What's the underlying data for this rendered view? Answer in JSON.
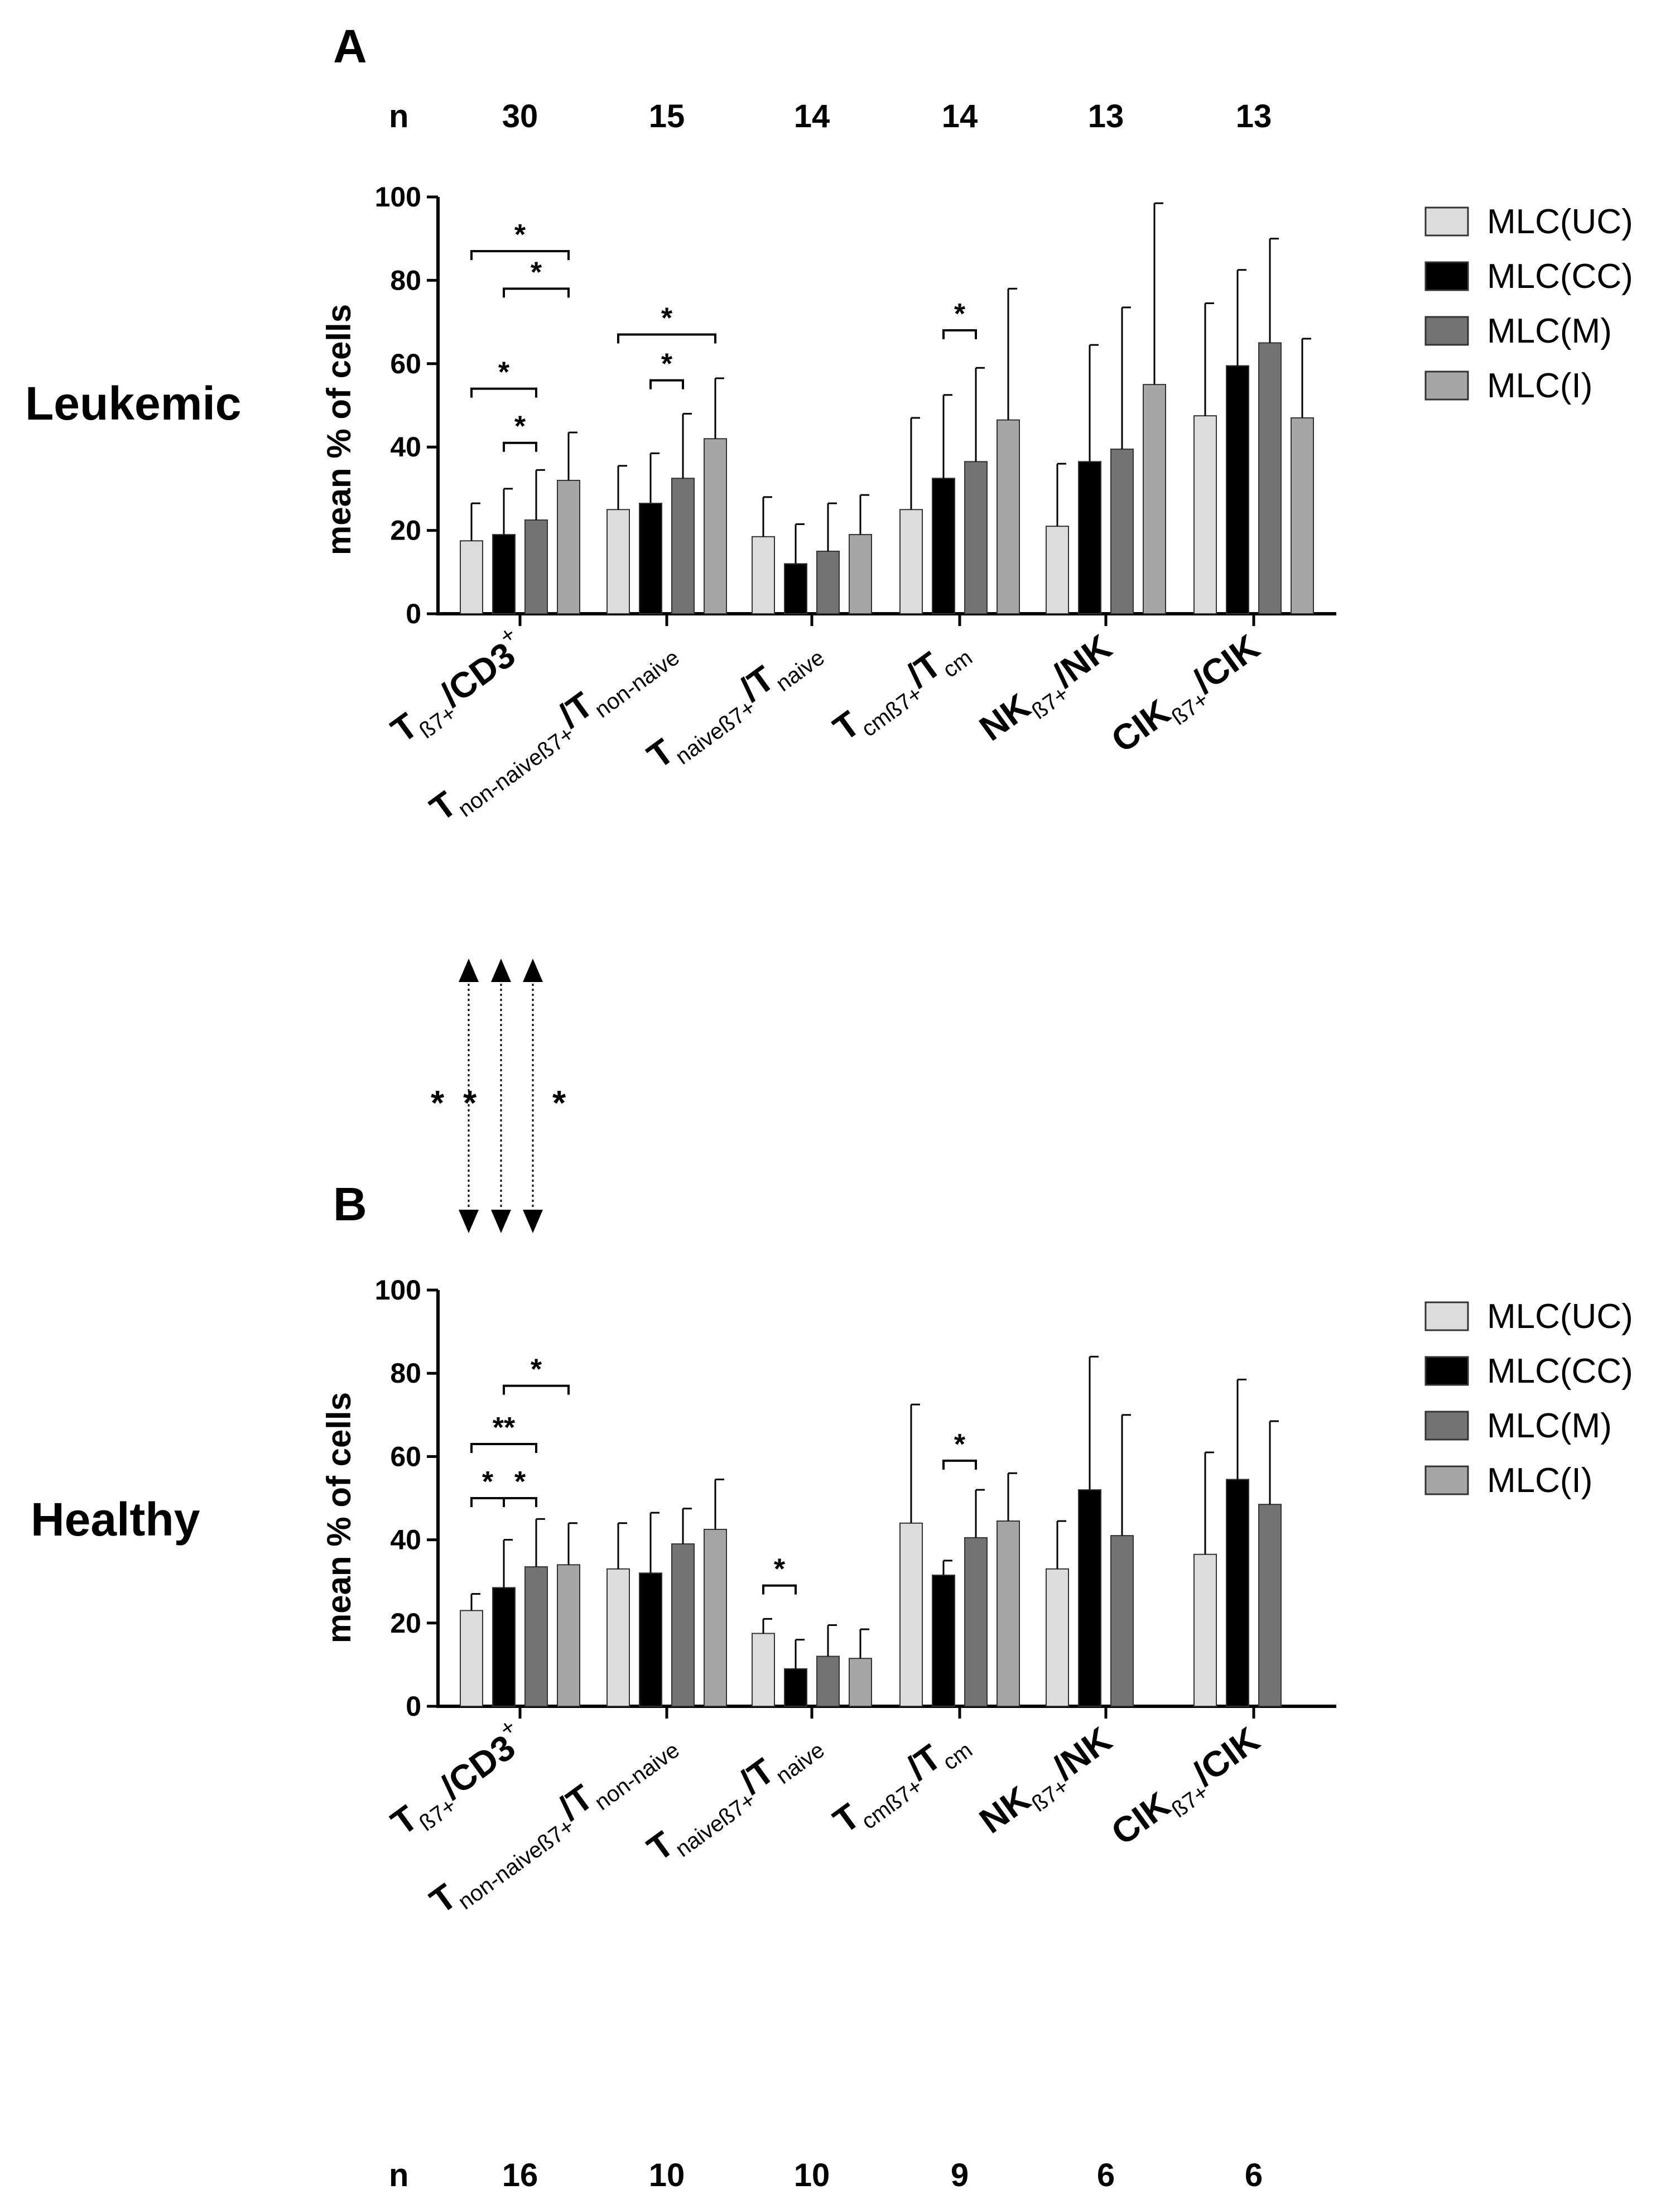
{
  "colors": {
    "MLC(UC)": "#dcdcdc",
    "MLC(CC)": "#000000",
    "MLC(M)": "#737373",
    "MLC(I)": "#a6a6a6"
  },
  "legend": [
    "MLC(UC)",
    "MLC(CC)",
    "MLC(M)",
    "MLC(I)"
  ],
  "cross_panel_stars": [
    "*",
    "*",
    "*"
  ],
  "chart_data": [
    {
      "type": "bar",
      "panel": "A",
      "row_label": "Leukemic",
      "ylabel": "mean % of cells",
      "ylim": [
        0,
        100
      ],
      "yticks": [
        "0",
        "20",
        "40",
        "60",
        "80",
        "100"
      ],
      "n_label": "n",
      "n_values": [
        "30",
        "15",
        "14",
        "14",
        "13",
        "13"
      ],
      "categories": [
        {
          "pre": "T",
          "sub": "ß7+",
          "mid": "/CD3",
          "sup": "+",
          "tail": ""
        },
        {
          "pre": "T",
          "sub": "non-naiveß7+",
          "mid": "/T",
          "sup": "",
          "tail": "non-naive"
        },
        {
          "pre": "T",
          "sub": "naiveß7+",
          "mid": "/T",
          "sup": "",
          "tail": "naive"
        },
        {
          "pre": "T",
          "sub": "cmß7+",
          "mid": "/T",
          "sup": "",
          "tail": "cm"
        },
        {
          "pre": "NK",
          "sub": "ß7+",
          "mid": "/NK",
          "sup": "",
          "tail": ""
        },
        {
          "pre": "CIK",
          "sub": "ß7+",
          "mid": "/CIK",
          "sup": "",
          "tail": ""
        }
      ],
      "series": [
        {
          "name": "MLC(UC)",
          "values": [
            17.5,
            25,
            18.5,
            25,
            21,
            47.5
          ],
          "errors": [
            9,
            10.5,
            9.5,
            22,
            15,
            27
          ]
        },
        {
          "name": "MLC(CC)",
          "values": [
            19,
            26.5,
            12,
            32.5,
            36.5,
            59.5
          ],
          "errors": [
            11,
            12,
            9.5,
            20,
            28,
            23
          ]
        },
        {
          "name": "MLC(M)",
          "values": [
            22.5,
            32.5,
            15,
            36.5,
            39.5,
            65
          ],
          "errors": [
            12,
            15.5,
            11.5,
            22.5,
            34,
            25
          ]
        },
        {
          "name": "MLC(I)",
          "values": [
            32,
            42,
            19,
            46.5,
            55,
            47
          ],
          "errors": [
            11.5,
            14.5,
            9.5,
            31.5,
            43.5,
            19
          ]
        }
      ],
      "significance": [
        {
          "category": 0,
          "from": 0,
          "to": 3,
          "level": 87,
          "label": "*"
        },
        {
          "category": 0,
          "from": 1,
          "to": 3,
          "level": 78,
          "label": "*"
        },
        {
          "category": 0,
          "from": 0,
          "to": 2,
          "level": 54,
          "label": "*"
        },
        {
          "category": 0,
          "from": 1,
          "to": 2,
          "level": 41,
          "label": "*"
        },
        {
          "category": 1,
          "from": 0,
          "to": 3,
          "level": 67,
          "label": "*"
        },
        {
          "category": 1,
          "from": 1,
          "to": 2,
          "level": 56,
          "label": "*"
        },
        {
          "category": 3,
          "from": 1,
          "to": 2,
          "level": 68,
          "label": "*"
        }
      ]
    },
    {
      "type": "bar",
      "panel": "B",
      "row_label": "Healthy",
      "ylabel": "mean % of cells",
      "ylim": [
        0,
        100
      ],
      "yticks": [
        "0",
        "20",
        "40",
        "60",
        "80",
        "100"
      ],
      "n_label": "n",
      "n_values": [
        "16",
        "10",
        "10",
        "9",
        "6",
        "6"
      ],
      "categories": [
        {
          "pre": "T",
          "sub": "ß7+",
          "mid": "/CD3",
          "sup": "+",
          "tail": ""
        },
        {
          "pre": "T",
          "sub": "non-naiveß7+",
          "mid": "/T",
          "sup": "",
          "tail": "non-naive"
        },
        {
          "pre": "T",
          "sub": "naiveß7+",
          "mid": "/T",
          "sup": "",
          "tail": "naive"
        },
        {
          "pre": "T",
          "sub": "cmß7+",
          "mid": "/T",
          "sup": "",
          "tail": "cm"
        },
        {
          "pre": "NK",
          "sub": "ß7+",
          "mid": "/NK",
          "sup": "",
          "tail": ""
        },
        {
          "pre": "CIK",
          "sub": "ß7+",
          "mid": "/CIK",
          "sup": "",
          "tail": ""
        }
      ],
      "series": [
        {
          "name": "MLC(UC)",
          "values": [
            23,
            33,
            17.5,
            44,
            33,
            36.5
          ],
          "errors": [
            4,
            11,
            3.5,
            28.5,
            11.5,
            24.5
          ]
        },
        {
          "name": "MLC(CC)",
          "values": [
            28.5,
            32,
            9,
            31.5,
            52,
            54.5
          ],
          "errors": [
            11.5,
            14.5,
            7,
            3.5,
            32,
            24
          ]
        },
        {
          "name": "MLC(M)",
          "values": [
            33.5,
            39,
            12,
            40.5,
            41,
            48.5
          ],
          "errors": [
            11.5,
            8.5,
            7.5,
            11.5,
            29,
            20
          ]
        },
        {
          "name": "MLC(I)",
          "values": [
            34,
            42.5,
            11.5,
            44.5,
            null,
            null
          ],
          "errors": [
            10,
            12,
            7,
            11.5,
            null,
            null
          ]
        }
      ],
      "significance": [
        {
          "category": 0,
          "from": 1,
          "to": 3,
          "level": 77,
          "label": "*"
        },
        {
          "category": 0,
          "from": 0,
          "to": 2,
          "level": 63,
          "label": "**"
        },
        {
          "category": 0,
          "from": 0,
          "to": 1,
          "level": 50,
          "label": "*"
        },
        {
          "category": 0,
          "from": 1,
          "to": 2,
          "level": 50,
          "label": "*"
        },
        {
          "category": 2,
          "from": 0,
          "to": 1,
          "level": 29,
          "label": "*"
        },
        {
          "category": 3,
          "from": 1,
          "to": 2,
          "level": 59,
          "label": "*"
        }
      ]
    }
  ]
}
